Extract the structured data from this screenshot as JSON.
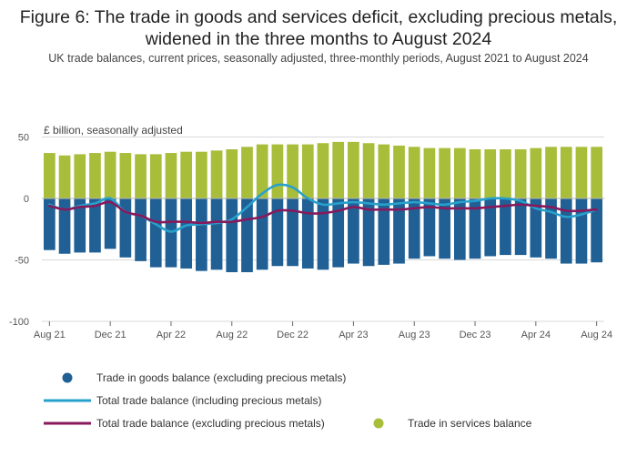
{
  "title_line1": "Figure 6: The trade in goods and services deficit, excluding precious metals,",
  "title_line2": "widened in the three months to August 2024",
  "subtitle": "UK trade balances, current prices, seasonally adjusted, three-monthly periods, August 2021 to August 2024",
  "unit_label": "£ billion, seasonally adjusted",
  "colors": {
    "goods": "#206095",
    "services": "#a8bd3a",
    "total_incl": "#27a0cc",
    "total_excl": "#871a5b",
    "gridline": "#d9d9d9",
    "zeroline": "#b3b3b3"
  },
  "chart_data": {
    "type": "bar+line",
    "title": "Figure 6: The trade in goods and services deficit, excluding precious metals, widened in the three months to August 2024",
    "ylabel": "£ billion, seasonally adjusted",
    "ylim": [
      -100,
      50
    ],
    "yticks": [
      50,
      0,
      -50,
      -100
    ],
    "x": [
      "Aug 21",
      "Sep 21",
      "Oct 21",
      "Nov 21",
      "Dec 21",
      "Jan 22",
      "Feb 22",
      "Mar 22",
      "Apr 22",
      "May 22",
      "Jun 22",
      "Jul 22",
      "Aug 22",
      "Sep 22",
      "Oct 22",
      "Nov 22",
      "Dec 22",
      "Jan 23",
      "Feb 23",
      "Mar 23",
      "Apr 23",
      "May 23",
      "Jun 23",
      "Jul 23",
      "Aug 23",
      "Sep 23",
      "Oct 23",
      "Nov 23",
      "Dec 23",
      "Jan 24",
      "Feb 24",
      "Mar 24",
      "Apr 24",
      "May 24",
      "Jun 24",
      "Jul 24",
      "Aug 24"
    ],
    "xtick_labels": [
      "Aug 21",
      "Dec 21",
      "Apr 22",
      "Aug 22",
      "Dec 22",
      "Apr 23",
      "Aug 23",
      "Dec 23",
      "Apr 24",
      "Aug 24"
    ],
    "xtick_index": [
      0,
      4,
      8,
      12,
      16,
      20,
      24,
      28,
      32,
      36
    ],
    "series": [
      {
        "name": "Trade in goods balance (excluding precious metals)",
        "kind": "bar",
        "color": "#206095",
        "values": [
          -42,
          -45,
          -44,
          -44,
          -41,
          -48,
          -51,
          -56,
          -56,
          -57,
          -59,
          -58,
          -60,
          -60,
          -58,
          -55,
          -55,
          -57,
          -58,
          -56,
          -53,
          -55,
          -54,
          -53,
          -49,
          -47,
          -49,
          -50,
          -49,
          -47,
          -46,
          -46,
          -48,
          -49,
          -53,
          -53,
          -52
        ]
      },
      {
        "name": "Trade in services balance",
        "kind": "bar",
        "color": "#a8bd3a",
        "values": [
          37,
          35,
          36,
          37,
          38,
          37,
          36,
          36,
          37,
          38,
          38,
          39,
          40,
          42,
          44,
          44,
          44,
          44,
          45,
          46,
          46,
          45,
          44,
          43,
          42,
          41,
          41,
          41,
          40,
          40,
          40,
          40,
          41,
          42,
          42,
          42,
          42
        ]
      },
      {
        "name": "Total trade balance (including precious metals)",
        "kind": "line",
        "color": "#27a0cc",
        "values": [
          -5,
          -9,
          -6,
          -4,
          0,
          -11,
          -14,
          -21,
          -27,
          -22,
          -21,
          -20,
          -17,
          -7,
          4,
          11,
          9,
          0,
          -5,
          -4,
          -3,
          -4,
          -5,
          -4,
          -3,
          -4,
          -5,
          -3,
          -2,
          0,
          0,
          -2,
          -8,
          -11,
          -15,
          -13,
          -9
        ]
      },
      {
        "name": "Total trade balance (excluding precious metals)",
        "kind": "line",
        "color": "#871a5b",
        "values": [
          -6,
          -9,
          -7,
          -6,
          -3,
          -11,
          -14,
          -19,
          -19,
          -19,
          -20,
          -19,
          -19,
          -17,
          -15,
          -10,
          -10,
          -12,
          -12,
          -10,
          -7,
          -9,
          -9,
          -9,
          -8,
          -7,
          -8,
          -8,
          -8,
          -7,
          -6,
          -5,
          -6,
          -7,
          -10,
          -10,
          -9
        ]
      }
    ],
    "legend": [
      {
        "label": "Trade in goods balance (excluding precious metals)",
        "symbol": "dot",
        "color": "#206095"
      },
      {
        "label": "Total trade balance (including precious metals)",
        "symbol": "line",
        "color": "#27a0cc"
      },
      {
        "label": "Total trade balance (excluding precious metals)",
        "symbol": "line",
        "color": "#871a5b"
      },
      {
        "label": "Trade in services balance",
        "symbol": "dot",
        "color": "#a8bd3a"
      }
    ],
    "legend_position": "bottom"
  }
}
